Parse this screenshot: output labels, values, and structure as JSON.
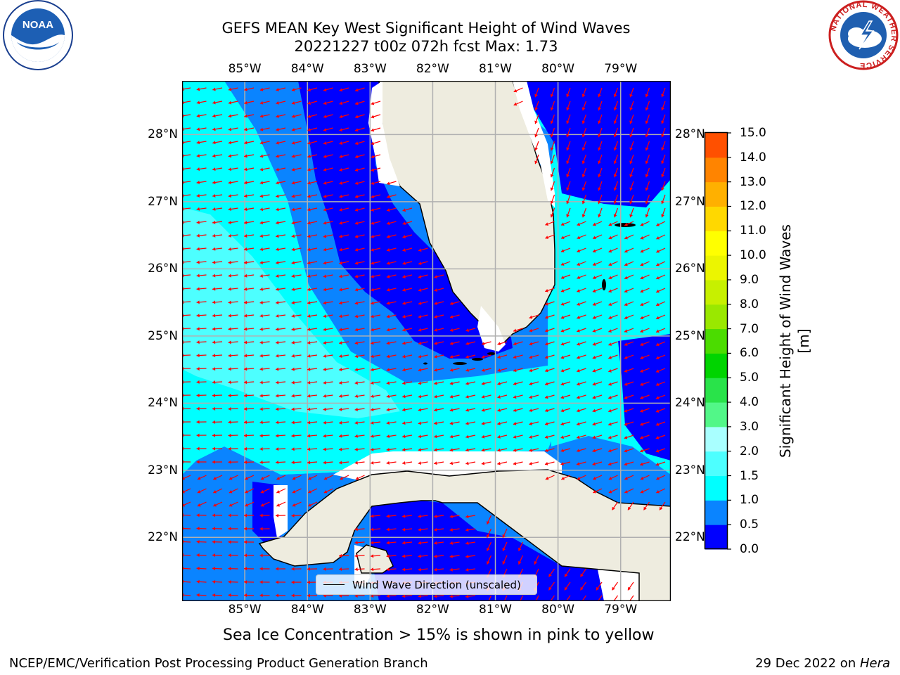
{
  "title": {
    "line1": "GEFS MEAN Key West Significant Height of Wind Waves",
    "line2": "20221227 t00z 072h fcst   Max: 1.73"
  },
  "logos": {
    "noaa_text": "NOAA",
    "nws_text": "NATIONAL WEATHER SERVICE"
  },
  "map": {
    "lon_labels": [
      "85°W",
      "84°W",
      "83°W",
      "82°W",
      "81°W",
      "80°W",
      "79°W"
    ],
    "lat_labels": [
      "28°N",
      "27°N",
      "26°N",
      "25°N",
      "24°N",
      "23°N",
      "22°N"
    ],
    "lon_range": [
      -86.0,
      -78.2
    ],
    "lat_range": [
      21.05,
      28.8
    ],
    "wave_direction": "mostly from the east, arrows pointing west to southwest",
    "colors": {
      "land": "#eeecdf",
      "arrow": "#ff0000",
      "grid": "#b0b0b0"
    }
  },
  "legend": {
    "label": "Wind Wave Direction (unscaled)"
  },
  "colorbar": {
    "label": "Significant Height of Wind Waves [m]",
    "ticks": [
      "0.0",
      "0.5",
      "1.0",
      "1.5",
      "2.0",
      "3.0",
      "4.0",
      "5.0",
      "6.0",
      "7.0",
      "8.0",
      "9.0",
      "10.0",
      "11.0",
      "12.0",
      "13.0",
      "14.0",
      "15.0"
    ],
    "colors": [
      "#0000ff",
      "#0a84ff",
      "#00ffff",
      "#4dffff",
      "#a9ffff",
      "#52f788",
      "#29e34a",
      "#00d400",
      "#4bdc00",
      "#9ae800",
      "#c7f000",
      "#ecf500",
      "#ffff00",
      "#ffd800",
      "#ffb000",
      "#ff8400",
      "#ff5000",
      "#ff1800",
      "#ff0000"
    ]
  },
  "subtitle": "Sea Ice Concentration > 15% is shown in pink to yellow",
  "footer": {
    "left": "NCEP/EMC/Verification Post Processing Product Generation Branch",
    "date": "29 Dec 2022 on ",
    "host": "Hera"
  }
}
